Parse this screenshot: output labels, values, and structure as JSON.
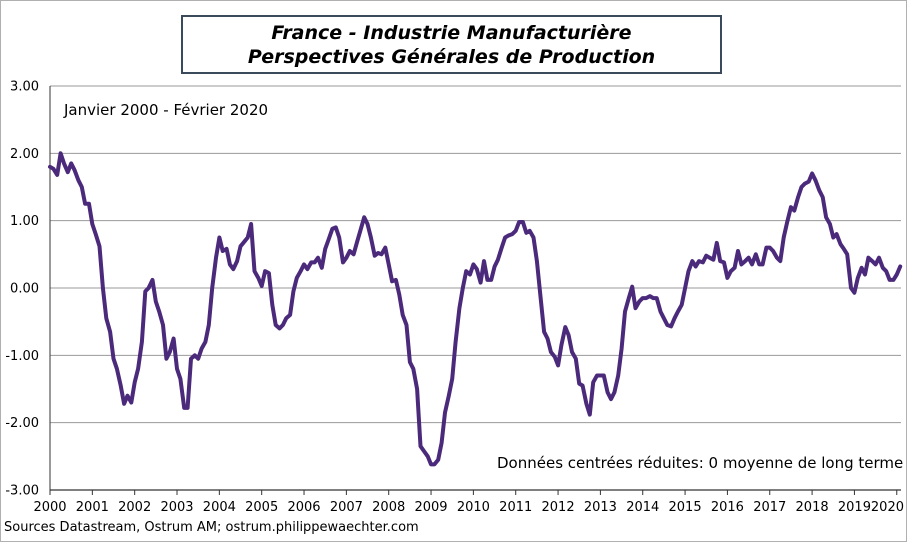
{
  "chart_data": {
    "type": "line",
    "title": [
      "France - Industrie Manufacturière",
      "Perspectives Générales de Production"
    ],
    "subtitle": "Janvier 2000 - Février 2020",
    "note": "Données centrées réduites: 0 moyenne de long terme",
    "source": "Sources Datastream, Ostrum AM; ostrum.philippewaechter.com",
    "ylim": [
      -3,
      3
    ],
    "y_ticks": [
      "3.00",
      "2.00",
      "1.00",
      "0.00",
      "-1.00",
      "-2.00",
      "-3.00"
    ],
    "x_ticks": [
      "2000",
      "2001",
      "2002",
      "2003",
      "2004",
      "2005",
      "2006",
      "2007",
      "2008",
      "2009",
      "2010",
      "2011",
      "2012",
      "2013",
      "2014",
      "2015",
      "2016",
      "2017",
      "2018",
      "2019",
      "2020"
    ],
    "xlim": [
      2000,
      2020.1
    ],
    "grid": true,
    "line_color": "#4b2a7b",
    "series": [
      {
        "x": [
          2000.0,
          2000.08,
          2000.17,
          2000.25,
          2000.33,
          2000.42,
          2000.5,
          2000.58,
          2000.67,
          2000.75,
          2000.83,
          2000.92,
          2001.0,
          2001.08,
          2001.17,
          2001.25,
          2001.33,
          2001.42,
          2001.5,
          2001.58,
          2001.67,
          2001.75,
          2001.83,
          2001.92,
          2002.0,
          2002.08,
          2002.17,
          2002.25,
          2002.33,
          2002.42,
          2002.5,
          2002.58,
          2002.67,
          2002.75,
          2002.83,
          2002.92,
          2003.0,
          2003.08,
          2003.17,
          2003.25,
          2003.33,
          2003.42,
          2003.5,
          2003.58,
          2003.67,
          2003.75,
          2003.83,
          2003.92,
          2004.0,
          2004.08,
          2004.17,
          2004.25,
          2004.33,
          2004.42,
          2004.5,
          2004.58,
          2004.67,
          2004.75,
          2004.83,
          2004.92,
          2005.0,
          2005.08,
          2005.17,
          2005.25,
          2005.33,
          2005.42,
          2005.5,
          2005.58,
          2005.67,
          2005.75,
          2005.83,
          2005.92,
          2006.0,
          2006.08,
          2006.17,
          2006.25,
          2006.33,
          2006.42,
          2006.5,
          2006.58,
          2006.67,
          2006.75,
          2006.83,
          2006.92,
          2007.0,
          2007.08,
          2007.17,
          2007.25,
          2007.33,
          2007.42,
          2007.5,
          2007.58,
          2007.67,
          2007.75,
          2007.83,
          2007.92,
          2008.0,
          2008.08,
          2008.17,
          2008.25,
          2008.33,
          2008.42,
          2008.5,
          2008.58,
          2008.67,
          2008.75,
          2008.83,
          2008.92,
          2009.0,
          2009.08,
          2009.17,
          2009.25,
          2009.33,
          2009.42,
          2009.5,
          2009.58,
          2009.67,
          2009.75,
          2009.83,
          2009.92,
          2010.0,
          2010.08,
          2010.17,
          2010.25,
          2010.33,
          2010.42,
          2010.5,
          2010.58,
          2010.67,
          2010.75,
          2010.83,
          2010.92,
          2011.0,
          2011.08,
          2011.17,
          2011.25,
          2011.33,
          2011.42,
          2011.5,
          2011.58,
          2011.67,
          2011.75,
          2011.83,
          2011.92,
          2012.0,
          2012.08,
          2012.17,
          2012.25,
          2012.33,
          2012.42,
          2012.5,
          2012.58,
          2012.67,
          2012.75,
          2012.83,
          2012.92,
          2013.0,
          2013.08,
          2013.17,
          2013.25,
          2013.33,
          2013.42,
          2013.5,
          2013.58,
          2013.67,
          2013.75,
          2013.83,
          2013.92,
          2014.0,
          2014.08,
          2014.17,
          2014.25,
          2014.33,
          2014.42,
          2014.5,
          2014.58,
          2014.67,
          2014.75,
          2014.83,
          2014.92,
          2015.0,
          2015.08,
          2015.17,
          2015.25,
          2015.33,
          2015.42,
          2015.5,
          2015.58,
          2015.67,
          2015.75,
          2015.83,
          2015.92,
          2016.0,
          2016.08,
          2016.17,
          2016.25,
          2016.33,
          2016.42,
          2016.5,
          2016.58,
          2016.67,
          2016.75,
          2016.83,
          2016.92,
          2017.0,
          2017.08,
          2017.17,
          2017.25,
          2017.33,
          2017.42,
          2017.5,
          2017.58,
          2017.67,
          2017.75,
          2017.83,
          2017.92,
          2018.0,
          2018.08,
          2018.17,
          2018.25,
          2018.33,
          2018.42,
          2018.5,
          2018.58,
          2018.67,
          2018.75,
          2018.83,
          2018.92,
          2019.0,
          2019.08,
          2019.17,
          2019.25,
          2019.33,
          2019.42,
          2019.5,
          2019.58,
          2019.67,
          2019.75,
          2019.83,
          2019.92,
          2020.0,
          2020.08
        ],
        "y": [
          1.8,
          1.77,
          1.68,
          2.0,
          1.85,
          1.72,
          1.85,
          1.75,
          1.6,
          1.5,
          1.25,
          1.25,
          0.95,
          0.8,
          0.62,
          0.0,
          -0.45,
          -0.65,
          -1.05,
          -1.2,
          -1.45,
          -1.72,
          -1.6,
          -1.7,
          -1.4,
          -1.2,
          -0.8,
          -0.05,
          0.0,
          0.12,
          -0.2,
          -0.35,
          -0.55,
          -1.05,
          -0.95,
          -0.75,
          -1.2,
          -1.35,
          -1.78,
          -1.78,
          -1.05,
          -1.0,
          -1.05,
          -0.9,
          -0.8,
          -0.55,
          0.0,
          0.45,
          0.75,
          0.55,
          0.58,
          0.35,
          0.28,
          0.4,
          0.62,
          0.68,
          0.75,
          0.95,
          0.25,
          0.15,
          0.03,
          0.25,
          0.22,
          -0.25,
          -0.55,
          -0.6,
          -0.55,
          -0.45,
          -0.4,
          -0.05,
          0.15,
          0.25,
          0.35,
          0.28,
          0.38,
          0.38,
          0.45,
          0.3,
          0.58,
          0.72,
          0.88,
          0.9,
          0.75,
          0.38,
          0.45,
          0.55,
          0.5,
          0.68,
          0.85,
          1.05,
          0.95,
          0.75,
          0.48,
          0.52,
          0.5,
          0.6,
          0.35,
          0.1,
          0.12,
          -0.1,
          -0.4,
          -0.55,
          -1.1,
          -1.2,
          -1.5,
          -2.35,
          -2.42,
          -2.5,
          -2.62,
          -2.62,
          -2.55,
          -2.3,
          -1.85,
          -1.6,
          -1.35,
          -0.8,
          -0.3,
          0.0,
          0.25,
          0.2,
          0.35,
          0.28,
          0.08,
          0.4,
          0.12,
          0.12,
          0.32,
          0.42,
          0.6,
          0.75,
          0.78,
          0.8,
          0.85,
          0.98,
          0.98,
          0.82,
          0.85,
          0.75,
          0.4,
          -0.1,
          -0.65,
          -0.75,
          -0.95,
          -1.02,
          -1.15,
          -0.85,
          -0.58,
          -0.7,
          -0.95,
          -1.05,
          -1.42,
          -1.45,
          -1.72,
          -1.88,
          -1.4,
          -1.3,
          -1.3,
          -1.3,
          -1.55,
          -1.65,
          -1.55,
          -1.3,
          -0.9,
          -0.35,
          -0.15,
          0.02,
          -0.3,
          -0.2,
          -0.15,
          -0.15,
          -0.12,
          -0.15,
          -0.15,
          -0.35,
          -0.45,
          -0.55,
          -0.57,
          -0.45,
          -0.35,
          -0.25,
          0.0,
          0.25,
          0.4,
          0.32,
          0.4,
          0.38,
          0.48,
          0.45,
          0.42,
          0.67,
          0.4,
          0.38,
          0.15,
          0.25,
          0.3,
          0.55,
          0.35,
          0.4,
          0.45,
          0.35,
          0.5,
          0.35,
          0.35,
          0.6,
          0.6,
          0.55,
          0.45,
          0.4,
          0.75,
          1.0,
          1.2,
          1.15,
          1.35,
          1.5,
          1.55,
          1.58,
          1.7,
          1.6,
          1.45,
          1.35,
          1.05,
          0.95,
          0.75,
          0.8,
          0.65,
          0.58,
          0.5,
          0.0,
          -0.07,
          0.15,
          0.3,
          0.2,
          0.45,
          0.4,
          0.35,
          0.45,
          0.3,
          0.25,
          0.12,
          0.12,
          0.2,
          0.32
        ]
      }
    ]
  }
}
